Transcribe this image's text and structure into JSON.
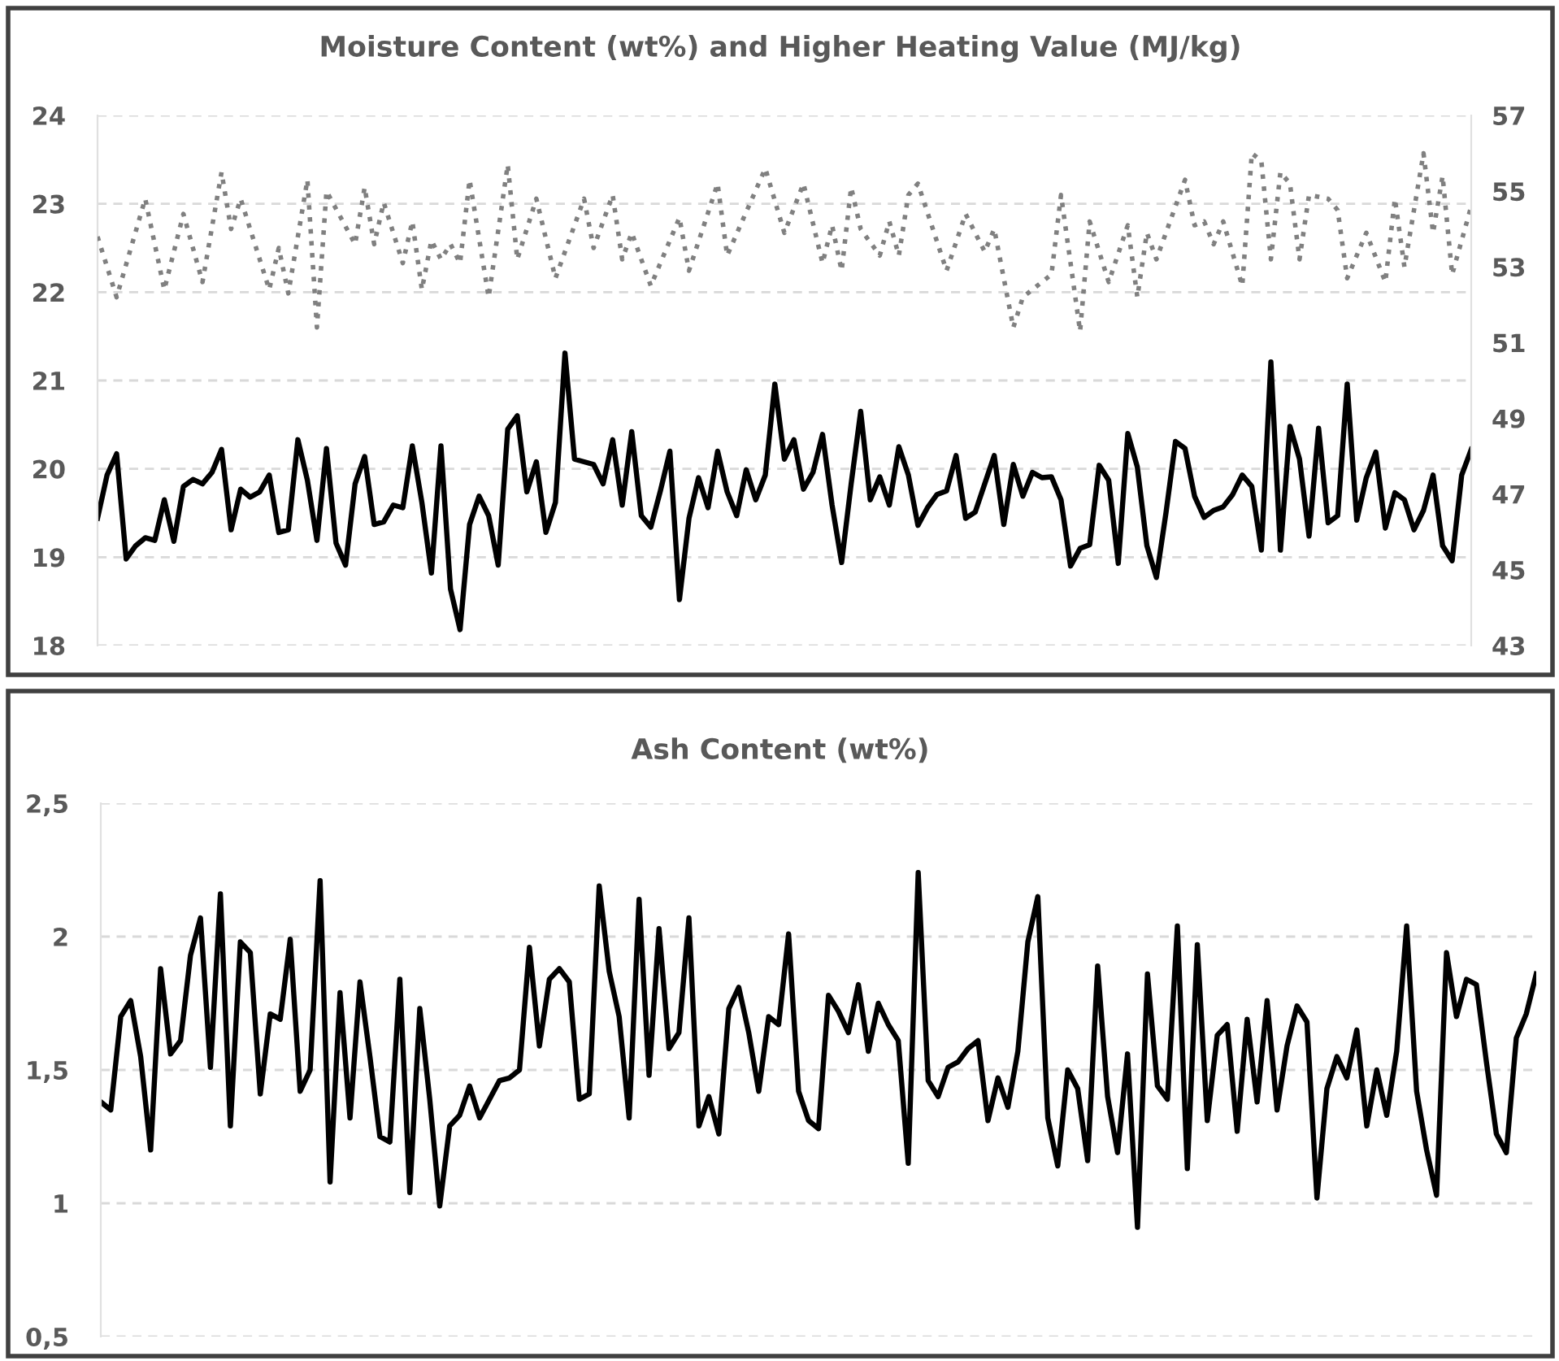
{
  "chart_data": [
    {
      "type": "line",
      "title": "Moisture Content (wt%) and Higher Heating Value (MJ/kg)",
      "categories": [
        null,
        null,
        null,
        null,
        null,
        null,
        null,
        null,
        null,
        null,
        null,
        null,
        null,
        null,
        null,
        null,
        null,
        null,
        null,
        null,
        null,
        null,
        null,
        null,
        null,
        null,
        null,
        null,
        null,
        null,
        null,
        null,
        null,
        null,
        null,
        null,
        null,
        null,
        null,
        null,
        null,
        null,
        null,
        null,
        null,
        null,
        null,
        null,
        null,
        null,
        null,
        null,
        null,
        null,
        null,
        null,
        null,
        null,
        null,
        null,
        null,
        null,
        null,
        null,
        null,
        null,
        null,
        null,
        null,
        null,
        null,
        null,
        null,
        null,
        null,
        null,
        null,
        null,
        null,
        null,
        null,
        null,
        null,
        null,
        null,
        null,
        null,
        null,
        null,
        null,
        null,
        null,
        null,
        null,
        null,
        null,
        null,
        null,
        null,
        null,
        null,
        null,
        null,
        null,
        null,
        null,
        null,
        null,
        null,
        null,
        null,
        null,
        null,
        null,
        null,
        null,
        null,
        null,
        null,
        null,
        null,
        null,
        null,
        null,
        null,
        null,
        null,
        null,
        null,
        null,
        null,
        null,
        null,
        null,
        null,
        null,
        null,
        null,
        null,
        null,
        null,
        null,
        null,
        null,
        null
      ],
      "ylim": [
        18,
        24
      ],
      "yticks": [
        18,
        19,
        20,
        21,
        22,
        23,
        24
      ],
      "y2lim": [
        43,
        57
      ],
      "y2ticks": [
        43,
        45,
        47,
        49,
        51,
        53,
        55,
        57
      ],
      "grid": "y",
      "tick_labels": "y",
      "series": [
        {
          "color": "#000000",
          "line_style": "solid",
          "values": [
            19.44,
            19.93,
            20.17,
            18.98,
            19.13,
            19.22,
            19.19,
            19.65,
            19.18,
            19.8,
            19.88,
            19.83,
            19.96,
            20.22,
            19.31,
            19.77,
            19.68,
            19.74,
            19.93,
            19.28,
            19.31,
            20.33,
            19.87,
            19.19,
            20.23,
            19.16,
            18.91,
            19.83,
            20.14,
            19.37,
            19.4,
            19.59,
            19.56,
            20.26,
            19.62,
            18.82,
            20.26,
            18.64,
            18.18,
            19.37,
            19.69,
            19.47,
            18.91,
            20.45,
            20.6,
            19.74,
            20.08,
            19.28,
            19.62,
            21.31,
            20.11,
            20.08,
            20.05,
            19.83,
            20.33,
            19.59,
            20.42,
            19.47,
            19.34,
            19.75,
            20.2,
            18.52,
            19.44,
            19.9,
            19.56,
            20.2,
            19.74,
            19.47,
            19.99,
            19.65,
            19.93,
            20.96,
            20.11,
            20.33,
            19.77,
            19.96,
            20.39,
            19.59,
            18.94,
            19.83,
            20.65,
            19.65,
            19.91,
            19.59,
            20.25,
            19.93,
            19.36,
            19.56,
            19.71,
            19.75,
            20.15,
            19.44,
            19.51,
            19.83,
            20.15,
            19.37,
            20.05,
            19.69,
            19.96,
            19.9,
            19.91,
            19.65,
            18.9,
            19.1,
            19.14,
            20.04,
            19.87,
            18.93,
            20.4,
            20.02,
            19.13,
            18.77,
            19.5,
            20.31,
            20.23,
            19.69,
            19.45,
            19.53,
            19.57,
            19.71,
            19.93,
            19.8,
            19.08,
            21.21,
            19.08,
            20.48,
            20.11,
            19.24,
            20.46,
            19.39,
            19.47,
            20.96,
            19.42,
            19.9,
            20.19,
            19.33,
            19.73,
            19.65,
            19.31,
            19.53,
            19.93,
            19.13,
            18.96,
            19.93,
            20.22
          ]
        },
        {
          "axis": "y2",
          "color": "#808080",
          "line_style": "dotted",
          "values": [
            53.8,
            null,
            52.2,
            null,
            null,
            54.8,
            null,
            52.4,
            null,
            54.4,
            null,
            52.6,
            null,
            55.5,
            54.0,
            54.8,
            null,
            null,
            52.4,
            53.5,
            52.3,
            null,
            55.3,
            51.4,
            55.0,
            null,
            null,
            53.6,
            55.1,
            53.6,
            54.7,
            null,
            53.1,
            54.2,
            52.4,
            53.7,
            53.2,
            53.6,
            53.1,
            55.3,
            null,
            52.2,
            null,
            55.7,
            53.2,
            null,
            54.8,
            null,
            52.7,
            null,
            null,
            54.8,
            53.5,
            null,
            54.9,
            53.2,
            53.9,
            null,
            52.5,
            null,
            null,
            54.3,
            52.9,
            null,
            null,
            55.2,
            53.3,
            null,
            null,
            null,
            55.6,
            null,
            53.9,
            null,
            55.2,
            null,
            53.1,
            54.1,
            52.9,
            55.1,
            54.0,
            null,
            53.3,
            54.2,
            53.3,
            54.9,
            55.2,
            null,
            null,
            52.9,
            null,
            54.4,
            null,
            53.4,
            54.0,
            null,
            51.4,
            52.2,
            null,
            null,
            52.8,
            54.9,
            null,
            51.3,
            54.2,
            null,
            52.6,
            null,
            54.1,
            52.2,
            53.9,
            53.2,
            null,
            null,
            55.3,
            54.1,
            54.2,
            53.6,
            54.2,
            null,
            52.5,
            56.0,
            55.8,
            53.2,
            55.5,
            55.2,
            53.2,
            54.9,
            null,
            54.8,
            54.5,
            52.7,
            null,
            53.9,
            null,
            52.6,
            54.8,
            53.0,
            null,
            56.0,
            53.9,
            55.4,
            52.8,
            null,
            54.6
          ]
        }
      ]
    },
    {
      "type": "line",
      "title": "Ash Content (wt%)",
      "categories": [
        null,
        null,
        null,
        null,
        null,
        null,
        null,
        null,
        null,
        null,
        null,
        null,
        null,
        null,
        null,
        null,
        null,
        null,
        null,
        null,
        null,
        null,
        null,
        null,
        null,
        null,
        null,
        null,
        null,
        null,
        null,
        null,
        null,
        null,
        null,
        null,
        null,
        null,
        null,
        null,
        null,
        null,
        null,
        null,
        null,
        null,
        null,
        null,
        null,
        null,
        null,
        null,
        null,
        null,
        null,
        null,
        null,
        null,
        null,
        null,
        null,
        null,
        null,
        null,
        null,
        null,
        null,
        null,
        null,
        null,
        null,
        null,
        null,
        null,
        null,
        null,
        null,
        null,
        null,
        null,
        null,
        null,
        null,
        null,
        null,
        null,
        null,
        null,
        null,
        null,
        null,
        null,
        null,
        null,
        null,
        null,
        null,
        null,
        null,
        null,
        null,
        null,
        null,
        null,
        null,
        null,
        null,
        null,
        null,
        null,
        null,
        null,
        null,
        null,
        null,
        null,
        null,
        null,
        null,
        null,
        null,
        null,
        null,
        null,
        null,
        null,
        null,
        null,
        null,
        null,
        null,
        null,
        null,
        null,
        null,
        null,
        null,
        null,
        null,
        null,
        null,
        null,
        null,
        null,
        null
      ],
      "ylim": [
        0.5,
        2.5
      ],
      "yticks": [
        {
          "value": 0.5,
          "label": "0,5"
        },
        1,
        {
          "value": 1.5,
          "label": "1,5"
        },
        2,
        {
          "value": 2.5,
          "label": "2,5"
        }
      ],
      "grid": "y",
      "tick_labels": "y",
      "series": [
        {
          "color": "#000000",
          "line_style": "solid",
          "values": [
            1.38,
            1.35,
            1.7,
            1.76,
            1.55,
            1.2,
            1.88,
            1.56,
            1.61,
            1.93,
            2.07,
            1.51,
            2.16,
            1.29,
            1.98,
            1.94,
            1.41,
            1.71,
            1.69,
            1.99,
            1.42,
            1.5,
            2.21,
            1.08,
            1.79,
            1.32,
            1.83,
            1.55,
            1.25,
            1.23,
            1.84,
            1.04,
            1.73,
            1.39,
            0.99,
            1.29,
            1.33,
            1.44,
            1.32,
            1.39,
            1.46,
            1.47,
            1.5,
            1.96,
            1.59,
            1.84,
            1.88,
            1.83,
            1.39,
            1.41,
            2.19,
            1.87,
            1.7,
            1.32,
            2.14,
            1.48,
            2.03,
            1.58,
            1.64,
            2.07,
            1.29,
            1.4,
            1.26,
            1.73,
            1.81,
            1.64,
            1.42,
            1.7,
            1.67,
            2.01,
            1.42,
            1.31,
            1.28,
            1.78,
            1.72,
            1.64,
            1.82,
            1.57,
            1.75,
            1.67,
            1.61,
            1.15,
            2.24,
            1.46,
            1.4,
            1.51,
            1.53,
            1.58,
            1.61,
            1.31,
            1.47,
            1.36,
            1.57,
            1.98,
            2.15,
            1.32,
            1.14,
            1.5,
            1.43,
            1.16,
            1.89,
            1.4,
            1.19,
            1.56,
            0.91,
            1.86,
            1.44,
            1.39,
            2.04,
            1.13,
            1.97,
            1.31,
            1.63,
            1.67,
            1.27,
            1.69,
            1.38,
            1.76,
            1.35,
            1.59,
            1.74,
            1.68,
            1.02,
            1.43,
            1.55,
            1.47,
            1.65,
            1.29,
            1.5,
            1.33,
            1.57,
            2.04,
            1.42,
            1.2,
            1.03,
            1.94,
            1.7,
            1.84,
            1.82,
            1.53,
            1.26,
            1.19,
            1.62,
            1.71,
            1.86
          ]
        }
      ]
    }
  ]
}
